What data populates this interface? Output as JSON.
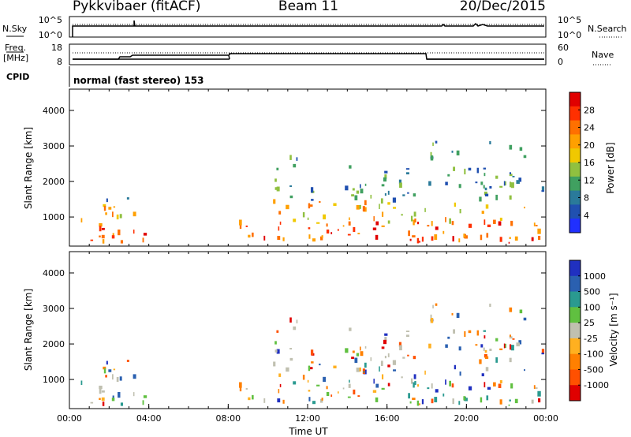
{
  "header": {
    "station": "Pykkvibaer (fitACF)",
    "beam": "Beam 11",
    "date": "20/Dec/2015"
  },
  "summary_panels": {
    "nsky": {
      "label": "N.Sky",
      "left_ticks": [
        "10^5",
        "10^0"
      ],
      "right_ticks": [
        "10^5",
        "10^0"
      ],
      "right_label": "N.Search"
    },
    "freq": {
      "label_line1": "Freq.",
      "label_line2": "[MHz]",
      "left_ticks": [
        "18",
        "8"
      ],
      "right_ticks": [
        "60",
        "0"
      ],
      "right_label": "Nave"
    },
    "cpid": {
      "label": "CPID",
      "text": "normal (fast stereo) 153"
    }
  },
  "chart_data": [
    {
      "type": "heatmap",
      "title": "",
      "ylabel": "Slant Range [km]",
      "xlabel": "",
      "y_ticks": [
        "1000",
        "2000",
        "3000",
        "4000"
      ],
      "ylim": [
        180,
        4600
      ],
      "colorbar": {
        "label": "Power [dB]",
        "ticks": [
          "28",
          "24",
          "20",
          "16",
          "12",
          "8",
          "4"
        ],
        "range": [
          0,
          32
        ],
        "colors": [
          "#e00000",
          "#ff3000",
          "#ff7000",
          "#ffa000",
          "#f0c800",
          "#90c040",
          "#40a060",
          "#2a7a9a",
          "#2050b0",
          "#2030ff"
        ]
      }
    },
    {
      "type": "heatmap",
      "title": "",
      "ylabel": "Slant Range [km]",
      "xlabel": "Time UT",
      "y_ticks": [
        "1000",
        "2000",
        "3000",
        "4000"
      ],
      "x_ticks": [
        "00:00",
        "04:00",
        "08:00",
        "12:00",
        "16:00",
        "20:00",
        "00:00"
      ],
      "ylim": [
        180,
        4600
      ],
      "colorbar": {
        "label": "Velocity [m s⁻¹]",
        "ticks": [
          "1000",
          "500",
          "100",
          "25",
          "-25",
          "-100",
          "-500",
          "-1000"
        ],
        "colors": [
          "#2030c0",
          "#2a60b0",
          "#2a9a90",
          "#60c040",
          "#c0c0b0",
          "#ffb020",
          "#ff8000",
          "#ff5000",
          "#e00000"
        ]
      }
    }
  ]
}
